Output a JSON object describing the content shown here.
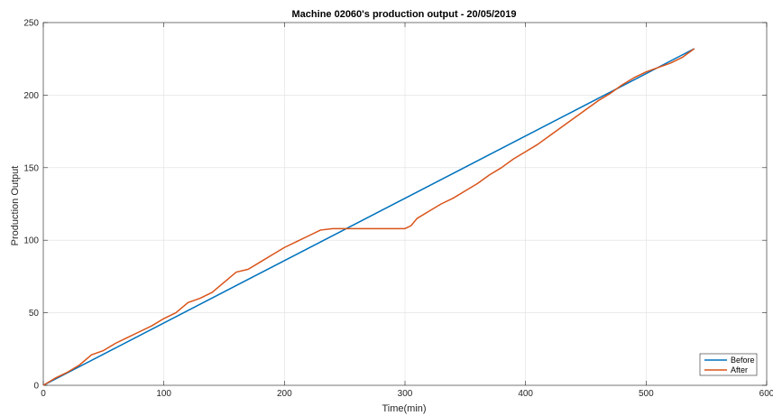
{
  "chart_data": {
    "type": "line",
    "title": "Machine 02060's production output - 20/05/2019",
    "xlabel": "Time(min)",
    "ylabel": "Production Output",
    "xlim": [
      0,
      600
    ],
    "ylim": [
      0,
      250
    ],
    "xticks": [
      0,
      100,
      200,
      300,
      400,
      500,
      600
    ],
    "yticks": [
      0,
      50,
      100,
      150,
      200,
      250
    ],
    "grid": true,
    "legend_position": "bottom-right",
    "colors": {
      "Before": "#0072BD",
      "After": "#D95319"
    },
    "series": [
      {
        "name": "Before",
        "x": [
          0,
          540
        ],
        "y": [
          0,
          232
        ]
      },
      {
        "name": "After",
        "x": [
          0,
          10,
          20,
          30,
          40,
          50,
          60,
          70,
          80,
          90,
          100,
          110,
          120,
          130,
          140,
          150,
          160,
          170,
          180,
          190,
          200,
          210,
          220,
          230,
          240,
          250,
          260,
          270,
          280,
          290,
          300,
          305,
          310,
          320,
          330,
          340,
          350,
          360,
          370,
          380,
          390,
          400,
          410,
          420,
          430,
          440,
          450,
          460,
          470,
          480,
          490,
          500,
          510,
          520,
          530,
          540
        ],
        "y": [
          0,
          5,
          9,
          14,
          21,
          24,
          29,
          33,
          37,
          41,
          46,
          50,
          57,
          60,
          64,
          71,
          78,
          80,
          85,
          90,
          95,
          99,
          103,
          107,
          108,
          108,
          108,
          108,
          108,
          108,
          108,
          110,
          115,
          120,
          125,
          129,
          134,
          139,
          145,
          150,
          156,
          161,
          166,
          172,
          178,
          184,
          190,
          196,
          201,
          207,
          212,
          216,
          219,
          222,
          226,
          232
        ]
      }
    ]
  }
}
